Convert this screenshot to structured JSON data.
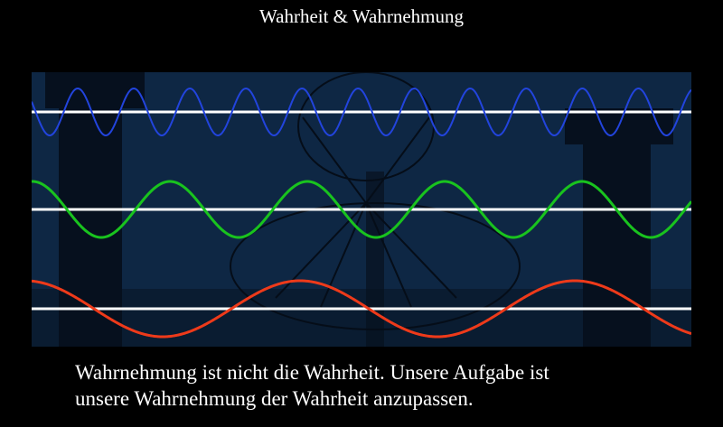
{
  "title": "Wahrheit & Wahrnehmung",
  "caption": {
    "line1": "Wahrnehmung ist nicht die Wahrheit. Unsere Aufgabe ist",
    "line2": "unsere Wahrnehmung der Wahrheit anzupassen."
  },
  "colors": {
    "background": "#000000",
    "panel": "#0e2744",
    "baseline": "#ffffff",
    "wave_high": "#2244dd",
    "wave_mid": "#19c31e",
    "wave_low": "#ee3a1a"
  },
  "waves": [
    {
      "color_key": "wave_high",
      "relative_frequency": 4.9
    },
    {
      "color_key": "wave_mid",
      "relative_frequency": 2.0
    },
    {
      "color_key": "wave_low",
      "relative_frequency": 1.0
    }
  ]
}
